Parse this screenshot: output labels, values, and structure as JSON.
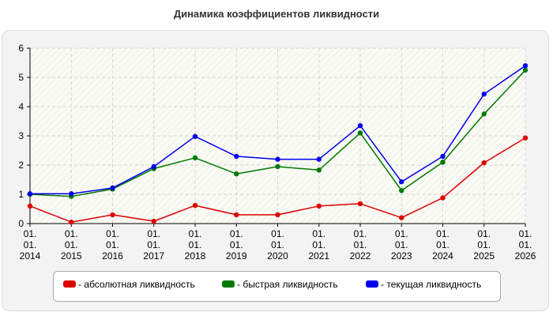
{
  "chart_data": {
    "type": "line",
    "title": "Динамика коэффициентов ликвидности",
    "x_tick_lines": [
      [
        "01.",
        "01.",
        "2014"
      ],
      [
        "01.",
        "01.",
        "2015"
      ],
      [
        "01.",
        "01.",
        "2016"
      ],
      [
        "01.",
        "01.",
        "2017"
      ],
      [
        "01.",
        "01.",
        "2018"
      ],
      [
        "01.",
        "01.",
        "2019"
      ],
      [
        "01.",
        "01.",
        "2020"
      ],
      [
        "01.",
        "01.",
        "2021"
      ],
      [
        "01.",
        "01.",
        "2022"
      ],
      [
        "01.",
        "01.",
        "2023"
      ],
      [
        "01.",
        "01.",
        "2024"
      ],
      [
        "01.",
        "01.",
        "2025"
      ],
      [
        "01.",
        "01.",
        "2026"
      ]
    ],
    "ylim": [
      0,
      6
    ],
    "y_ticks": [
      0,
      1,
      2,
      3,
      4,
      5,
      6
    ],
    "grid": true,
    "legend_position": "bottom",
    "series": [
      {
        "name": "- абсолютная ликвидность",
        "color": "#dd0000",
        "values": [
          0.6,
          0.05,
          0.3,
          0.08,
          0.62,
          0.3,
          0.3,
          0.6,
          0.68,
          0.2,
          0.88,
          2.08,
          2.93
        ]
      },
      {
        "name": "- быстрая ликвидность",
        "color": "#007a00",
        "values": [
          1.0,
          0.93,
          1.18,
          1.88,
          2.25,
          1.7,
          1.95,
          1.83,
          3.1,
          1.13,
          2.1,
          3.75,
          5.25
        ]
      },
      {
        "name": "- текущая ликвидность",
        "color": "#0000ee",
        "values": [
          1.02,
          1.02,
          1.22,
          1.95,
          2.98,
          2.3,
          2.2,
          2.2,
          3.35,
          1.43,
          2.3,
          4.43,
          5.4
        ]
      }
    ]
  }
}
